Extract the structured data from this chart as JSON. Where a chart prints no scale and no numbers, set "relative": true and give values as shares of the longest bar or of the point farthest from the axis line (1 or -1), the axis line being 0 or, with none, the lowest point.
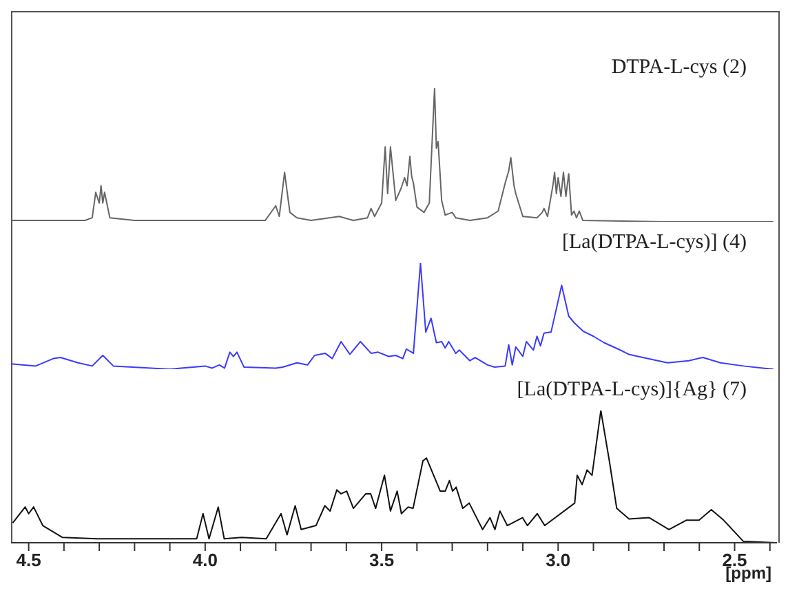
{
  "chart_data": [
    {
      "type": "line",
      "title": "DTPA-L-cys (2)",
      "relative": true,
      "color": "#666666",
      "xlim": [
        4.55,
        2.38
      ],
      "tick_labels": false,
      "x": [
        4.55,
        4.34,
        4.32,
        4.31,
        4.3,
        4.295,
        4.29,
        4.285,
        4.27,
        4.2,
        3.9,
        3.83,
        3.8,
        3.79,
        3.775,
        3.76,
        3.74,
        3.7,
        3.62,
        3.58,
        3.54,
        3.53,
        3.52,
        3.5,
        3.49,
        3.483,
        3.475,
        3.46,
        3.445,
        3.435,
        3.428,
        3.42,
        3.415,
        3.41,
        3.4,
        3.38,
        3.365,
        3.35,
        3.345,
        3.34,
        3.33,
        3.32,
        3.3,
        3.29,
        3.25,
        3.2,
        3.17,
        3.15,
        3.14,
        3.134,
        3.125,
        3.12,
        3.1,
        3.06,
        3.045,
        3.04,
        3.03,
        3.015,
        3.01,
        3.005,
        3.0,
        2.992,
        2.985,
        2.978,
        2.97,
        2.962,
        2.955,
        2.948,
        2.94,
        2.93,
        2.7,
        2.39
      ],
      "values": [
        0.01,
        0.01,
        0.03,
        0.22,
        0.14,
        0.27,
        0.14,
        0.22,
        0.03,
        0.01,
        0.01,
        0.01,
        0.12,
        0.04,
        0.37,
        0.07,
        0.03,
        0.01,
        0.04,
        0.01,
        0.03,
        0.1,
        0.04,
        0.14,
        0.56,
        0.21,
        0.56,
        0.16,
        0.25,
        0.33,
        0.27,
        0.49,
        0.34,
        0.29,
        0.11,
        0.07,
        0.14,
        1,
        0.55,
        0.6,
        0.16,
        0.05,
        0.07,
        0.03,
        0.01,
        0.03,
        0.08,
        0.29,
        0.38,
        0.48,
        0.27,
        0.21,
        0.04,
        0.03,
        0.07,
        0.1,
        0.04,
        0.27,
        0.37,
        0.21,
        0.33,
        0.19,
        0.37,
        0.19,
        0.36,
        0.05,
        0.08,
        0.03,
        0.08,
        0.01,
        0,
        0
      ]
    },
    {
      "type": "line",
      "title": "[La(DTPA-L-cys)] (4)",
      "relative": true,
      "color": "#3a3aff",
      "xlim": [
        4.55,
        2.38
      ],
      "tick_labels": false,
      "x": [
        4.55,
        4.48,
        4.43,
        4.41,
        4.36,
        4.32,
        4.29,
        4.26,
        4.1,
        4.0,
        3.98,
        3.96,
        3.945,
        3.93,
        3.92,
        3.91,
        3.89,
        3.8,
        3.78,
        3.74,
        3.71,
        3.69,
        3.66,
        3.64,
        3.615,
        3.59,
        3.56,
        3.53,
        3.51,
        3.48,
        3.46,
        3.44,
        3.43,
        3.41,
        3.39,
        3.375,
        3.36,
        3.345,
        3.33,
        3.32,
        3.31,
        3.29,
        3.28,
        3.25,
        3.235,
        3.2,
        3.18,
        3.15,
        3.14,
        3.13,
        3.12,
        3.1,
        3.09,
        3.07,
        3.06,
        3.05,
        3.04,
        3.02,
        2.99,
        2.97,
        2.955,
        2.93,
        2.9,
        2.87,
        2.83,
        2.8,
        2.76,
        2.69,
        2.63,
        2.59,
        2.54,
        2.475,
        2.42,
        2.39
      ],
      "values": [
        0.05,
        0.03,
        0.1,
        0.11,
        0.06,
        0.03,
        0.13,
        0.03,
        0,
        0.03,
        0.01,
        0.04,
        0.01,
        0.16,
        0.12,
        0.16,
        0.02,
        0.01,
        0.02,
        0.06,
        0.04,
        0.13,
        0.15,
        0.1,
        0.26,
        0.14,
        0.26,
        0.15,
        0.16,
        0.12,
        0.13,
        0.1,
        0.19,
        0.15,
        1,
        0.35,
        0.48,
        0.25,
        0.26,
        0.2,
        0.26,
        0.15,
        0.18,
        0.08,
        0.11,
        0.04,
        0.02,
        0.03,
        0.23,
        0.04,
        0.21,
        0.12,
        0.26,
        0.18,
        0.31,
        0.22,
        0.34,
        0.35,
        0.79,
        0.5,
        0.44,
        0.36,
        0.31,
        0.25,
        0.19,
        0.14,
        0.11,
        0.06,
        0.08,
        0.11,
        0.06,
        0.03,
        0.01,
        0
      ]
    },
    {
      "type": "line",
      "title": "[La(DTPA-L-cys)]{Ag} (7)",
      "relative": true,
      "color": "#111111",
      "xlim": [
        4.55,
        2.38
      ],
      "tick_labels": "x",
      "xlabel": "[ppm]",
      "xticks": [
        {
          "value": 4.5,
          "label": "4.5"
        },
        {
          "value": 4.4,
          "label": null
        },
        {
          "value": 4.3,
          "label": null
        },
        {
          "value": 4.2,
          "label": null
        },
        {
          "value": 4.1,
          "label": null
        },
        {
          "value": 4,
          "label": "4.0"
        },
        {
          "value": 3.9,
          "label": null
        },
        {
          "value": 3.8,
          "label": null
        },
        {
          "value": 3.7,
          "label": null
        },
        {
          "value": 3.6,
          "label": null
        },
        {
          "value": 3.5,
          "label": "3.5"
        },
        {
          "value": 3.4,
          "label": null
        },
        {
          "value": 3.3,
          "label": null
        },
        {
          "value": 3.2,
          "label": null
        },
        {
          "value": 3.1,
          "label": null
        },
        {
          "value": 3,
          "label": "3.0"
        },
        {
          "value": 2.9,
          "label": null
        },
        {
          "value": 2.8,
          "label": null
        },
        {
          "value": 2.7,
          "label": null
        },
        {
          "value": 2.6,
          "label": null
        },
        {
          "value": 2.5,
          "label": "2.5"
        },
        {
          "value": 2.4,
          "label": null
        }
      ],
      "x": [
        4.545,
        4.51,
        4.5,
        4.486,
        4.46,
        4.404,
        4.306,
        4.024,
        4.006,
        3.989,
        3.963,
        3.946,
        3.897,
        3.827,
        3.785,
        3.768,
        3.745,
        3.728,
        3.686,
        3.661,
        3.646,
        3.627,
        3.615,
        3.599,
        3.58,
        3.545,
        3.531,
        3.517,
        3.492,
        3.475,
        3.456,
        3.444,
        3.425,
        3.411,
        3.383,
        3.373,
        3.362,
        3.334,
        3.32,
        3.308,
        3.299,
        3.289,
        3.27,
        3.252,
        3.214,
        3.193,
        3.179,
        3.165,
        3.144,
        3.101,
        3.087,
        3.059,
        3.038,
        2.953,
        2.946,
        2.932,
        2.918,
        2.904,
        2.879,
        2.855,
        2.834,
        2.799,
        2.742,
        2.686,
        2.637,
        2.601,
        2.566,
        2.531,
        2.475,
        2.383
      ],
      "values": [
        0.15,
        0.27,
        0.22,
        0.27,
        0.13,
        0.04,
        0.03,
        0.03,
        0.22,
        0.03,
        0.27,
        0.03,
        0.04,
        0.03,
        0.22,
        0.06,
        0.28,
        0.1,
        0.13,
        0.28,
        0.24,
        0.4,
        0.37,
        0.39,
        0.26,
        0.37,
        0.37,
        0.26,
        0.51,
        0.24,
        0.39,
        0.22,
        0.27,
        0.26,
        0.62,
        0.64,
        0.57,
        0.39,
        0.39,
        0.47,
        0.39,
        0.42,
        0.26,
        0.3,
        0.1,
        0.19,
        0.1,
        0.24,
        0.13,
        0.19,
        0.13,
        0.22,
        0.13,
        0.3,
        0.51,
        0.44,
        0.55,
        0.51,
        1,
        0.62,
        0.26,
        0.18,
        0.19,
        0.1,
        0.17,
        0.17,
        0.25,
        0.17,
        0.01,
        0
      ]
    }
  ]
}
